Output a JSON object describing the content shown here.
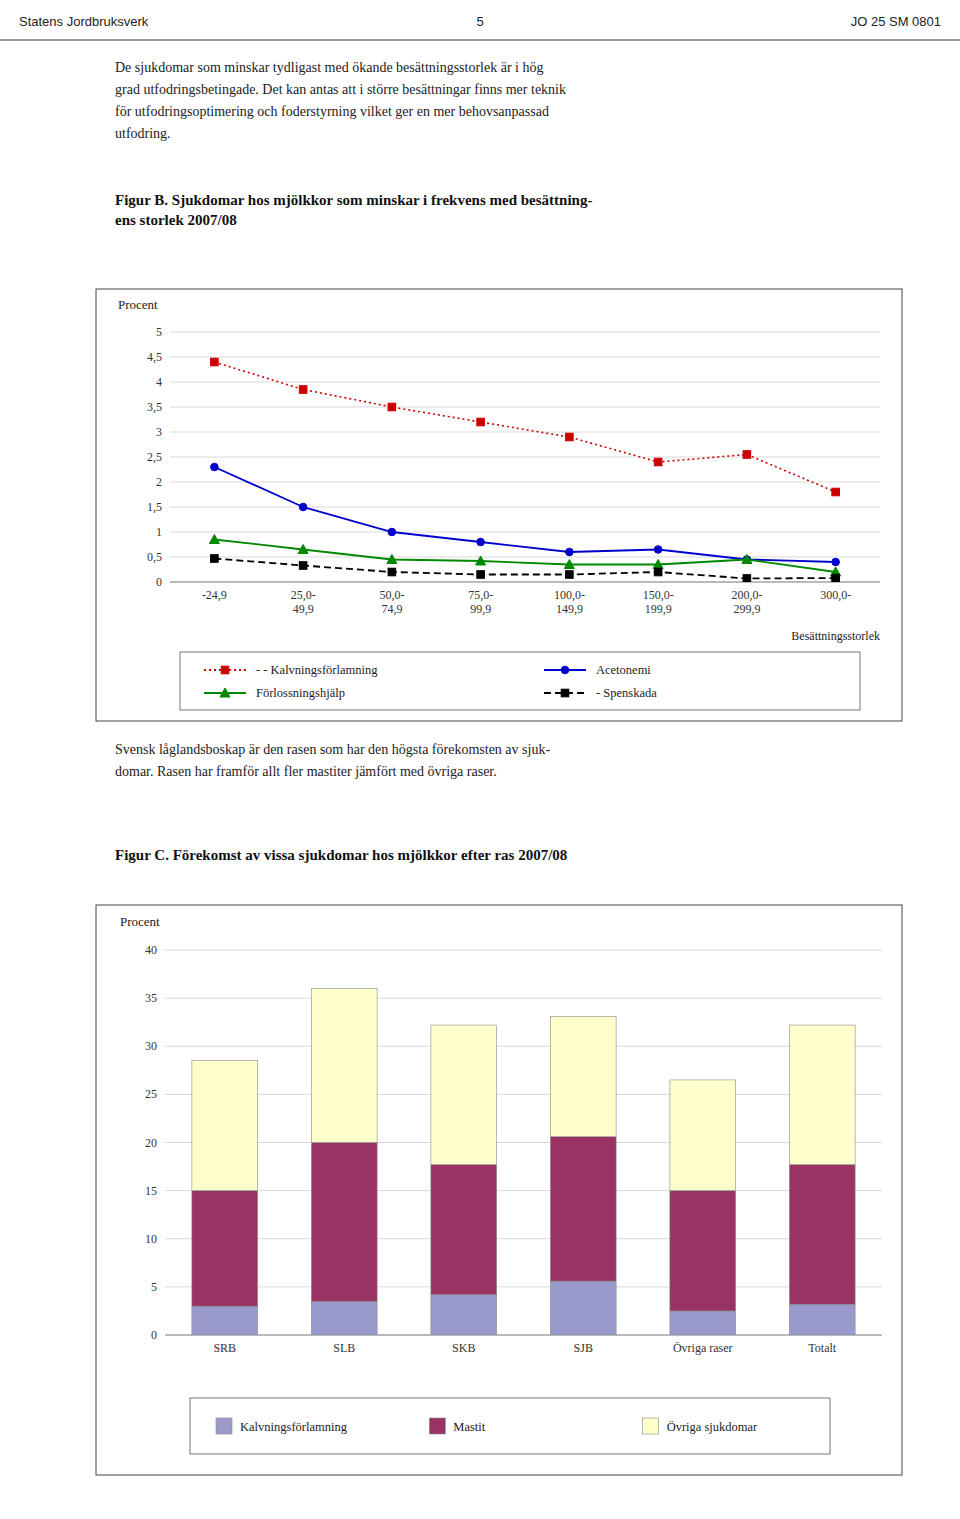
{
  "chart_data": [
    {
      "type": "line",
      "title": "Figur B. Sjukdomar hos mjölkkor som minskar i frekvens med besättning-\nens storlek 2007/08",
      "annotations": [
        "Statens Jordbruksverk",
        "5",
        "JO 25 SM 0801",
        "De sjukdomar som minskar tydligast med ökande besättningsstorlek är i hög\ngrad utfodringsbetingade. Det kan antas att i större besättningar finns mer teknik\nför utfodringsoptimering och foderstyrning vilket ger en mer behovsanpassad\nutfodring."
      ],
      "ylabel": "Procent",
      "xlabel": "Besättningsstorlek",
      "categories": [
        "-24,9",
        "25,0-\n49,9",
        "50,0-\n74,9",
        "75,0-\n99,9",
        "100,0-\n149,9",
        "150,0-\n199,9",
        "200,0-\n299,9",
        "300,0-"
      ],
      "series": [
        {
          "name": "- - Kalvningsförlamning",
          "color": "#CC0000",
          "marker": "square",
          "line_style": "dotted",
          "values": [
            4.4,
            3.85,
            3.5,
            3.2,
            2.9,
            2.4,
            2.55,
            1.8
          ]
        },
        {
          "name": "Acetonemi",
          "color": "#0000CC",
          "marker": "circle",
          "line_style": "solid",
          "values": [
            2.3,
            1.5,
            1.0,
            0.8,
            0.6,
            0.65,
            0.45,
            0.4
          ]
        },
        {
          "name": "Förlossningshjälp",
          "color": "#008800",
          "marker": "triangle",
          "line_style": "solid",
          "values": [
            0.85,
            0.65,
            0.45,
            0.42,
            0.35,
            0.35,
            0.45,
            0.2
          ]
        },
        {
          "name": "- Spenskada",
          "color": "#000000",
          "marker": "square",
          "line_style": "dashed",
          "values": [
            0.47,
            0.33,
            0.2,
            0.15,
            0.15,
            0.2,
            0.07,
            0.08
          ]
        }
      ],
      "ylim": [
        0,
        5
      ],
      "yticks": [
        0,
        {
          "value": 0.5,
          "label": "0,5"
        },
        1,
        {
          "value": 1.5,
          "label": "1,5"
        },
        2,
        {
          "value": 2.5,
          "label": "2,5"
        },
        3,
        {
          "value": 3.5,
          "label": "3,5"
        },
        4,
        {
          "value": 4.5,
          "label": "4,5"
        },
        5
      ],
      "grid": true,
      "legend": "bottom"
    },
    {
      "type": "bar",
      "title": "Figur C. Förekomst av vissa sjukdomar hos mjölkkor efter ras 2007/08",
      "annotations": [
        "Svensk låglandsboskap är den rasen som har den högsta förekomsten av sjuk-\ndomar. Rasen har framför allt fler mastiter jämfört med övriga raser."
      ],
      "ylabel": "Procent",
      "categories": [
        "SRB",
        "SLB",
        "SKB",
        "SJB",
        "Övriga raser",
        "Totalt"
      ],
      "stacked": true,
      "series": [
        {
          "name": "Kalvningsförlamning",
          "color": "#9999CC",
          "values": [
            3.0,
            3.5,
            4.2,
            5.6,
            2.5,
            3.2
          ]
        },
        {
          "name": "Mastit",
          "color": "#993366",
          "values": [
            12.0,
            16.5,
            13.5,
            15.0,
            12.5,
            14.5
          ]
        },
        {
          "name": "Övriga sjukdomar",
          "color": "#FFFFCC",
          "values": [
            13.5,
            16.0,
            14.5,
            12.5,
            11.5,
            14.5
          ]
        }
      ],
      "ylim": [
        0,
        40
      ],
      "yticks": [
        0,
        5,
        10,
        15,
        20,
        25,
        30,
        35,
        40
      ],
      "grid": true,
      "legend": "bottom"
    }
  ]
}
